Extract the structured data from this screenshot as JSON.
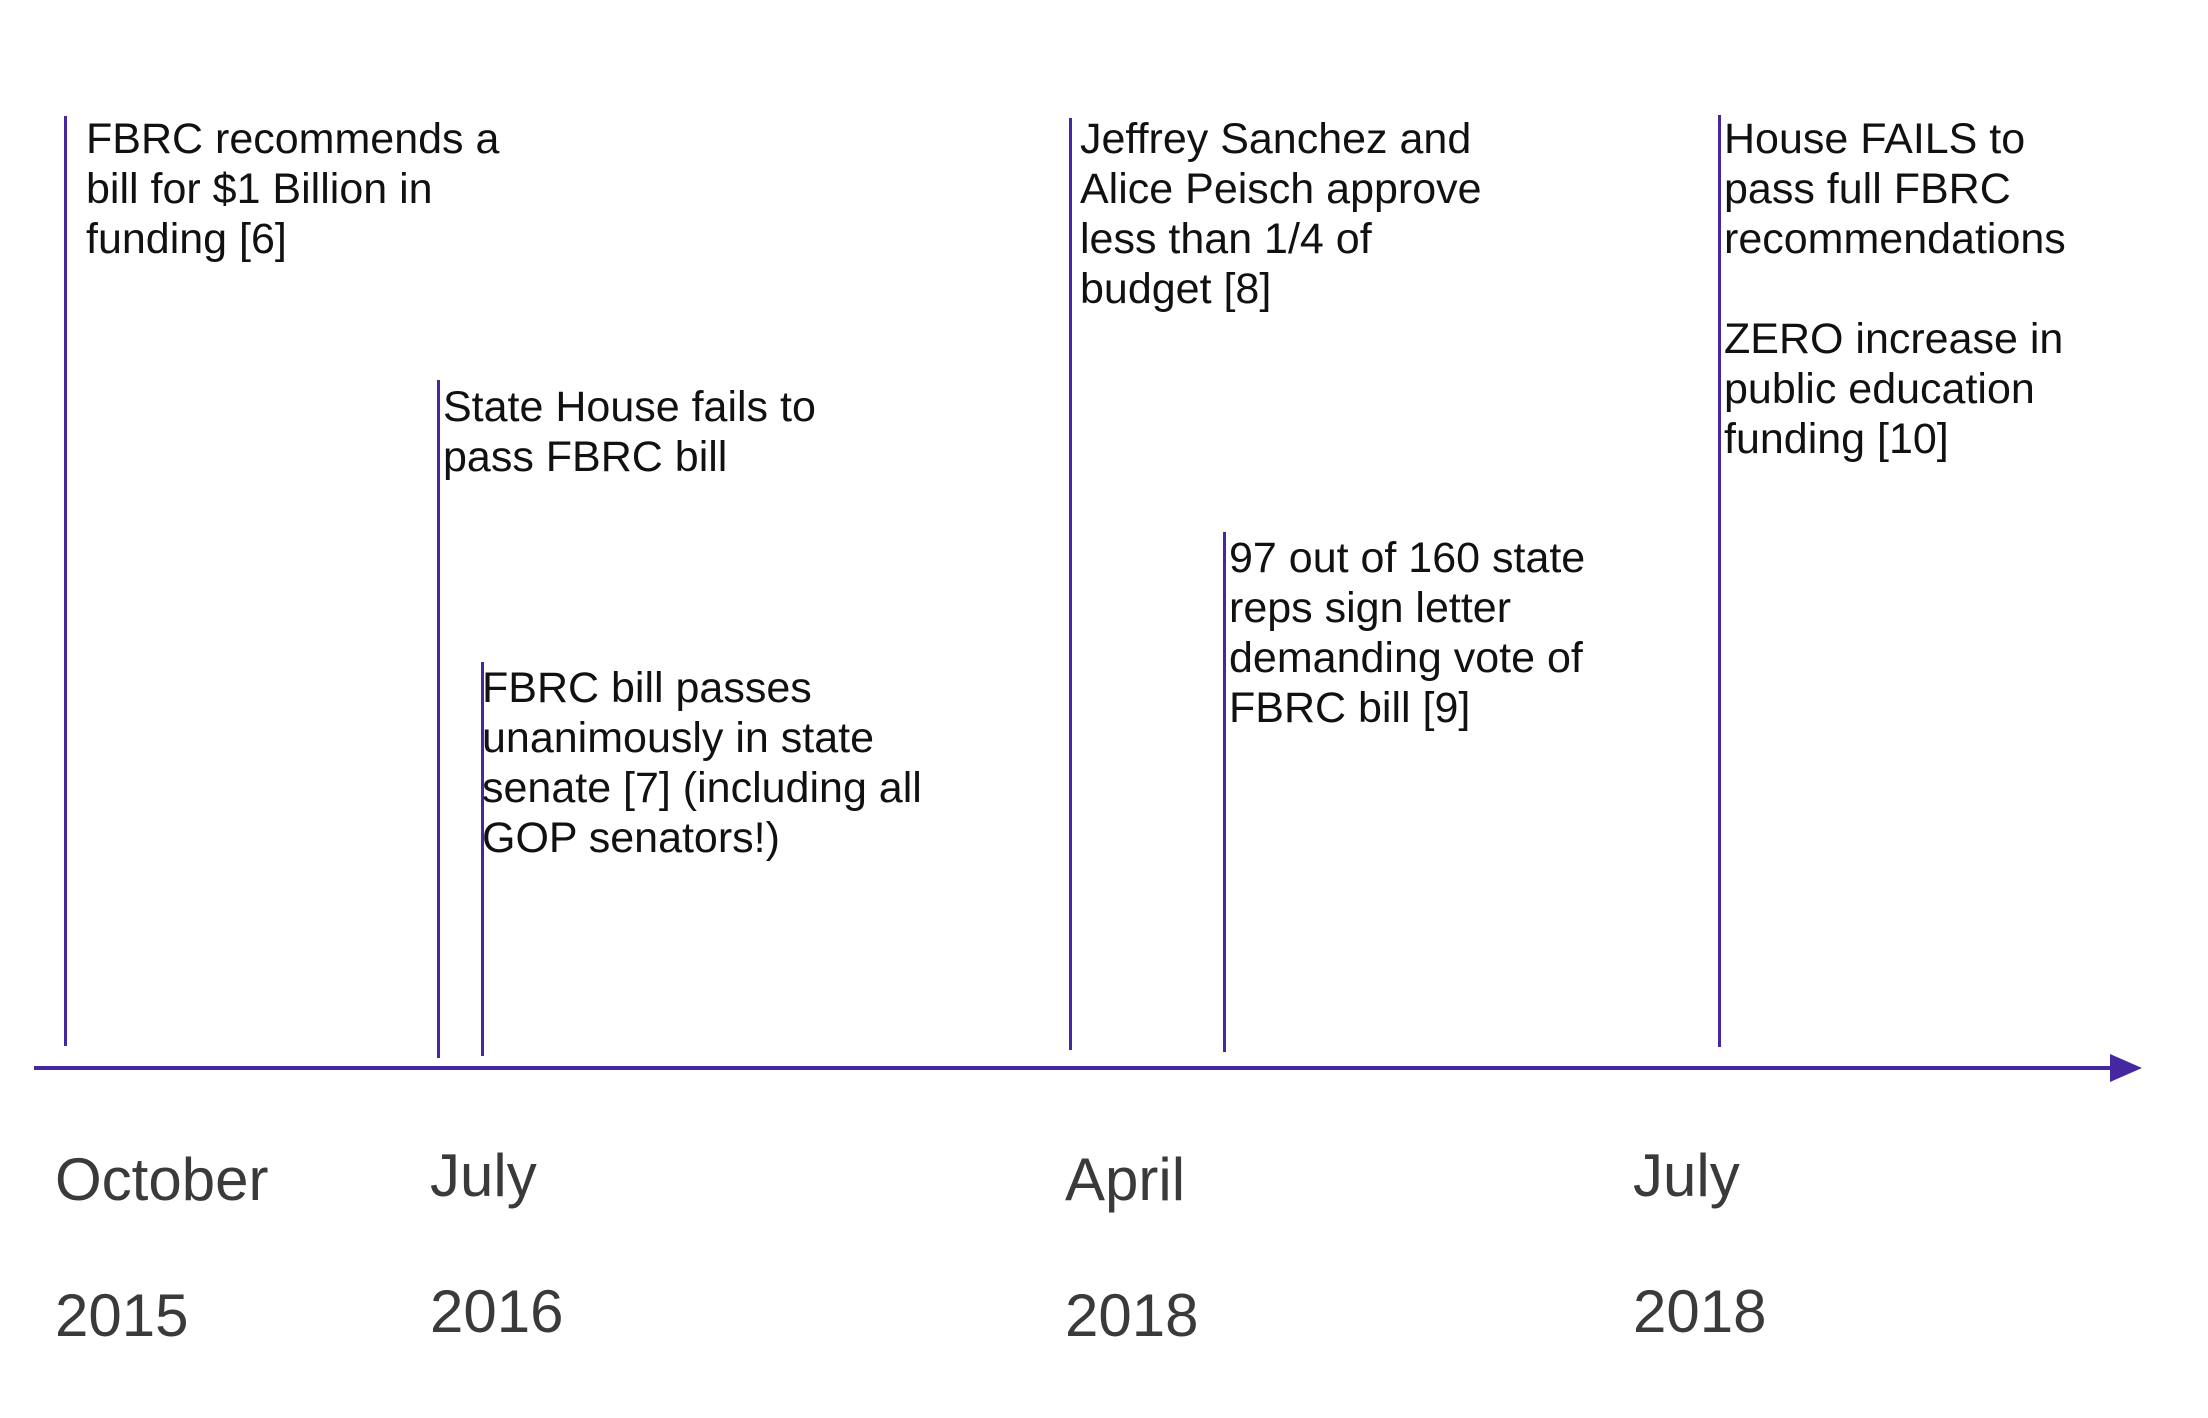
{
  "colors": {
    "accent": "#4527A0",
    "text": "#111111",
    "axis_label": "#3a3a3a",
    "background": "#ffffff"
  },
  "timeline": {
    "axis_labels": [
      {
        "id": "oct-2015",
        "month": "October",
        "year": "2015"
      },
      {
        "id": "jul-2016",
        "month": "July",
        "year": "2016"
      },
      {
        "id": "apr-2018",
        "month": "April",
        "year": "2018"
      },
      {
        "id": "jul-2018",
        "month": "July",
        "year": "2018"
      }
    ],
    "events": [
      {
        "id": "fbrc-recommends",
        "text": "FBRC recommends a\nbill for $1 Billion in\nfunding [6]"
      },
      {
        "id": "house-fails-2016",
        "text": "State House fails to\npass FBRC bill"
      },
      {
        "id": "senate-passes",
        "text": "FBRC bill passes\nunanimously in state\nsenate [7] (including all\nGOP senators!)"
      },
      {
        "id": "sanchez-peisch",
        "text": "Jeffrey Sanchez and\nAlice Peisch approve\nless than 1/4 of\nbudget [8]"
      },
      {
        "id": "reps-letter",
        "text": "97 out of 160 state\nreps sign letter\ndemanding vote of\nFBRC bill [9]"
      },
      {
        "id": "house-fails-2018",
        "text": "House FAILS to\npass full FBRC\nrecommendations\n\nZERO increase in\npublic education\nfunding [10]"
      }
    ]
  }
}
